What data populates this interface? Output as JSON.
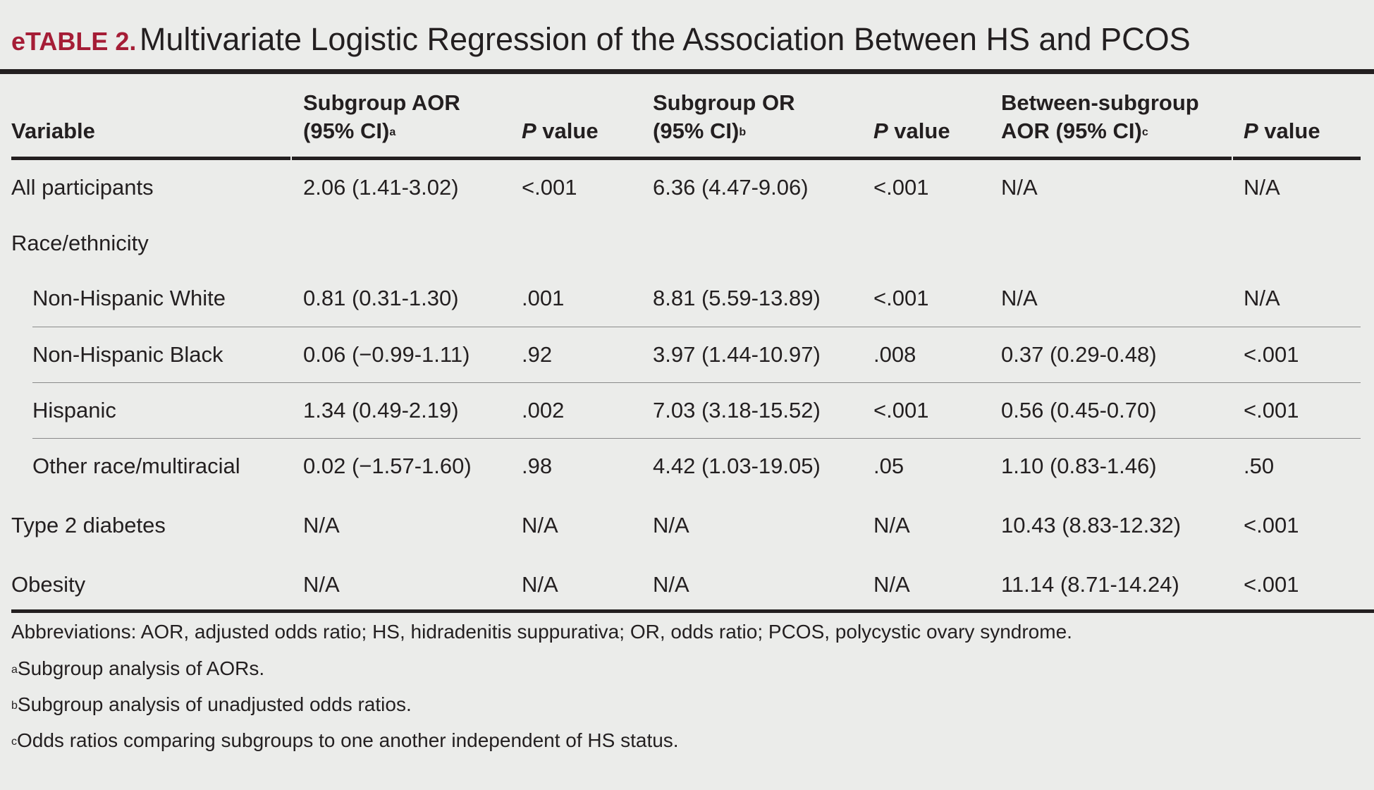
{
  "title": {
    "label": "eTABLE 2.",
    "text": "Multivariate Logistic Regression of the Association Between HS and PCOS"
  },
  "headers": {
    "variable": "Variable",
    "aor_line1": "Subgroup AOR",
    "aor_line2": "(95% CI)",
    "aor_sup": "a",
    "p_italic": "P",
    "p_rest": " value",
    "or_line1": "Subgroup OR",
    "or_line2": "(95% CI)",
    "or_sup": "b",
    "between_line1": "Between-subgroup",
    "between_line2": "AOR (95% CI)",
    "between_sup": "c"
  },
  "rows": [
    {
      "variable": "All participants",
      "aor": "2.06 (1.41-3.02)",
      "p1": "<.001",
      "or": "6.36 (4.47-9.06)",
      "p2": "<.001",
      "between": "N/A",
      "p3": "N/A"
    },
    {
      "variable": "Race/ethnicity",
      "aor": "",
      "p1": "",
      "or": "",
      "p2": "",
      "between": "",
      "p3": ""
    },
    {
      "variable": "Non-Hispanic White",
      "aor": "0.81 (0.31-1.30)",
      "p1": ".001",
      "or": "8.81 (5.59-13.89)",
      "p2": "<.001",
      "between": "N/A",
      "p3": "N/A"
    },
    {
      "variable": "Non-Hispanic Black",
      "aor": "0.06 (−0.99-1.11)",
      "p1": ".92",
      "or": "3.97 (1.44-10.97)",
      "p2": ".008",
      "between": "0.37 (0.29-0.48)",
      "p3": "<.001"
    },
    {
      "variable": "Hispanic",
      "aor": "1.34 (0.49-2.19)",
      "p1": ".002",
      "or": "7.03 (3.18-15.52)",
      "p2": "<.001",
      "between": "0.56 (0.45-0.70)",
      "p3": "<.001"
    },
    {
      "variable": "Other race/multiracial",
      "aor": "0.02 (−1.57-1.60)",
      "p1": ".98",
      "or": "4.42 (1.03-19.05)",
      "p2": ".05",
      "between": "1.10 (0.83-1.46)",
      "p3": ".50"
    },
    {
      "variable": "Type 2 diabetes",
      "aor": "N/A",
      "p1": "N/A",
      "or": "N/A",
      "p2": "N/A",
      "between": "10.43 (8.83-12.32)",
      "p3": "<.001"
    },
    {
      "variable": "Obesity",
      "aor": "N/A",
      "p1": "N/A",
      "or": "N/A",
      "p2": "N/A",
      "between": "11.14 (8.71-14.24)",
      "p3": "<.001"
    }
  ],
  "footnotes": {
    "abbreviations": "Abbreviations:  AOR, adjusted odds ratio; HS, hidradenitis suppurativa; OR, odds ratio; PCOS, polycystic ovary syndrome.",
    "a_mark": "a",
    "a_text": "Subgroup analysis of AORs.",
    "b_mark": "b",
    "b_text": "Subgroup analysis of unadjusted odds ratios.",
    "c_mark": "c",
    "c_text": "Odds ratios comparing subgroups to one another independent of HS status."
  }
}
